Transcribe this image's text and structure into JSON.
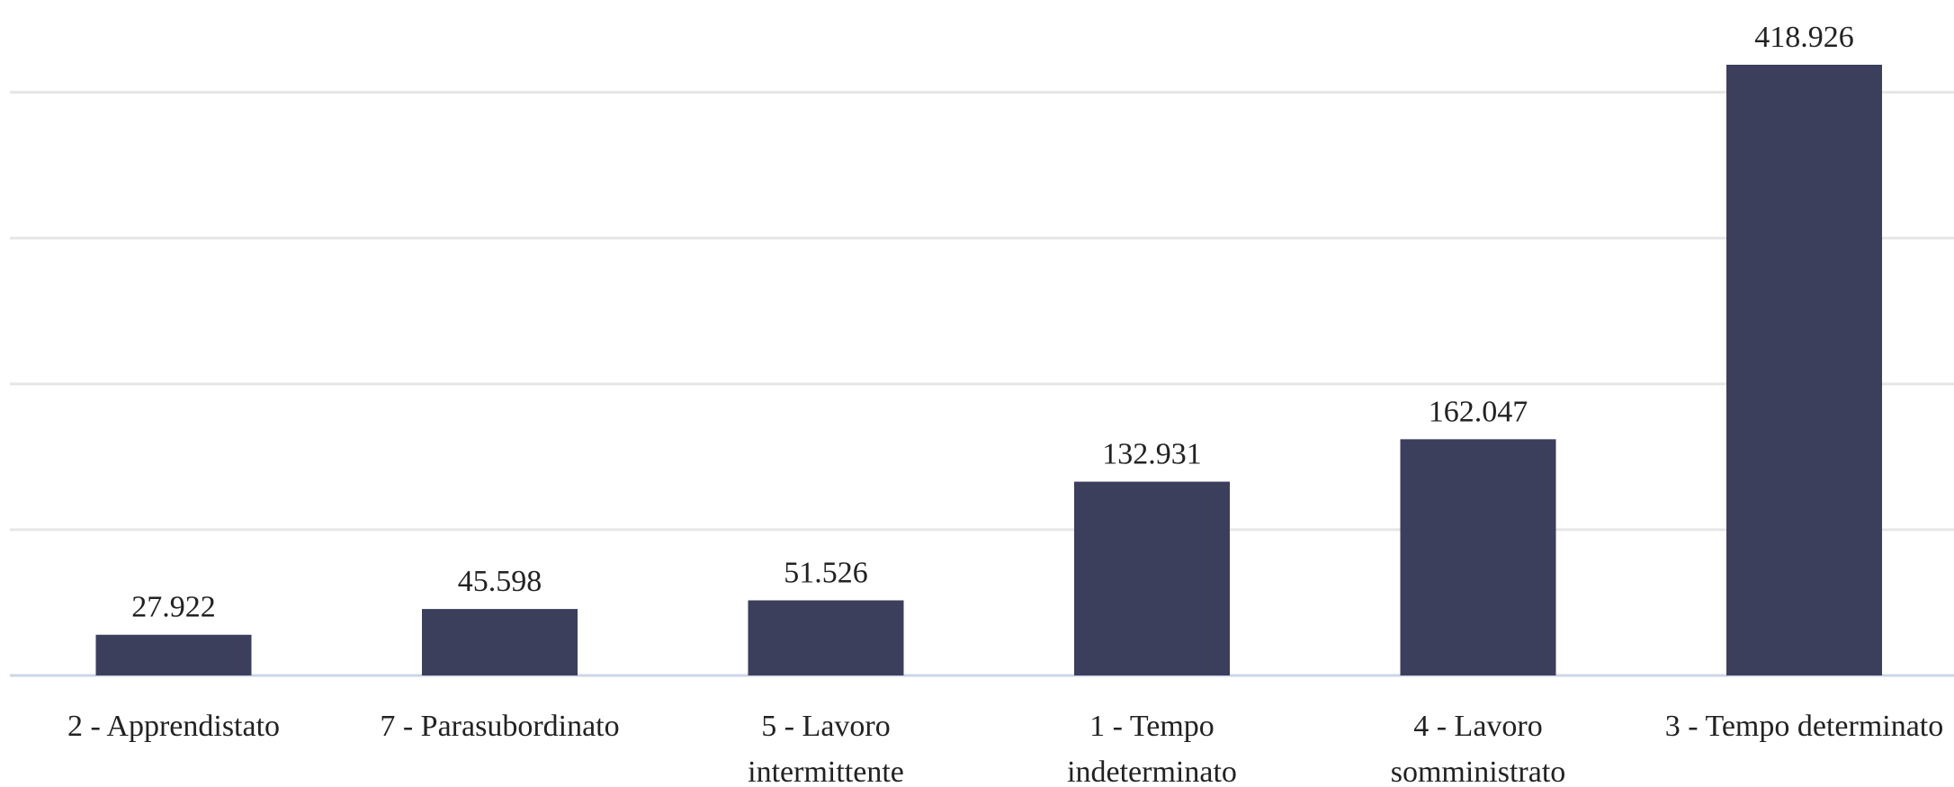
{
  "chart_data": {
    "type": "bar",
    "categories": [
      "2 - Apprendistato",
      "7 - Parasubordinato",
      "5 - Lavoro intermittente",
      "1 - Tempo indeterminato",
      "4 - Lavoro somministrato",
      "3 - Tempo determinato"
    ],
    "values": [
      27922,
      45598,
      51526,
      132931,
      162047,
      418926
    ],
    "value_labels": [
      "27.922",
      "45.598",
      "51.526",
      "132.931",
      "162.047",
      "418.926"
    ],
    "color": "#3b3f5c",
    "ylim": [
      0,
      463340
    ],
    "yticks": [
      0,
      100000,
      200000,
      300000,
      400000
    ],
    "grid": true
  }
}
